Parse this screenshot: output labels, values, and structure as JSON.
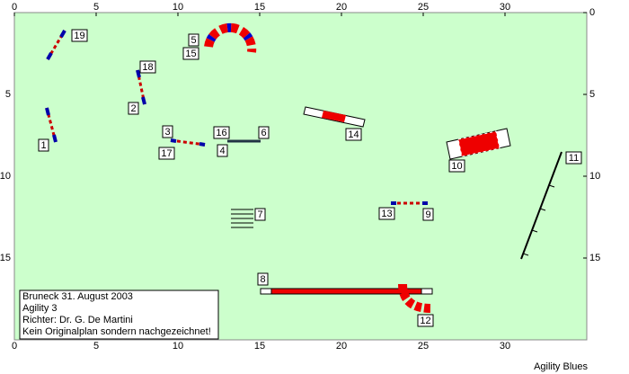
{
  "axes": {
    "xticks": [
      0,
      5,
      10,
      15,
      20,
      25,
      30
    ],
    "yticks": [
      0,
      5,
      10,
      15
    ]
  },
  "obstacle_labels": [
    "19",
    "5",
    "15",
    "18",
    "2",
    "1",
    "3",
    "17",
    "16",
    "6",
    "4",
    "14",
    "10",
    "11",
    "7",
    "13",
    "9",
    "8",
    "12"
  ],
  "info_box": [
    "Bruneck 31. August 2003",
    "Agility 3",
    "Richter: Dr. G. De Martini",
    "Kein Originalplan sondern nachgezeichnet!"
  ],
  "footer": "Agility Blues"
}
